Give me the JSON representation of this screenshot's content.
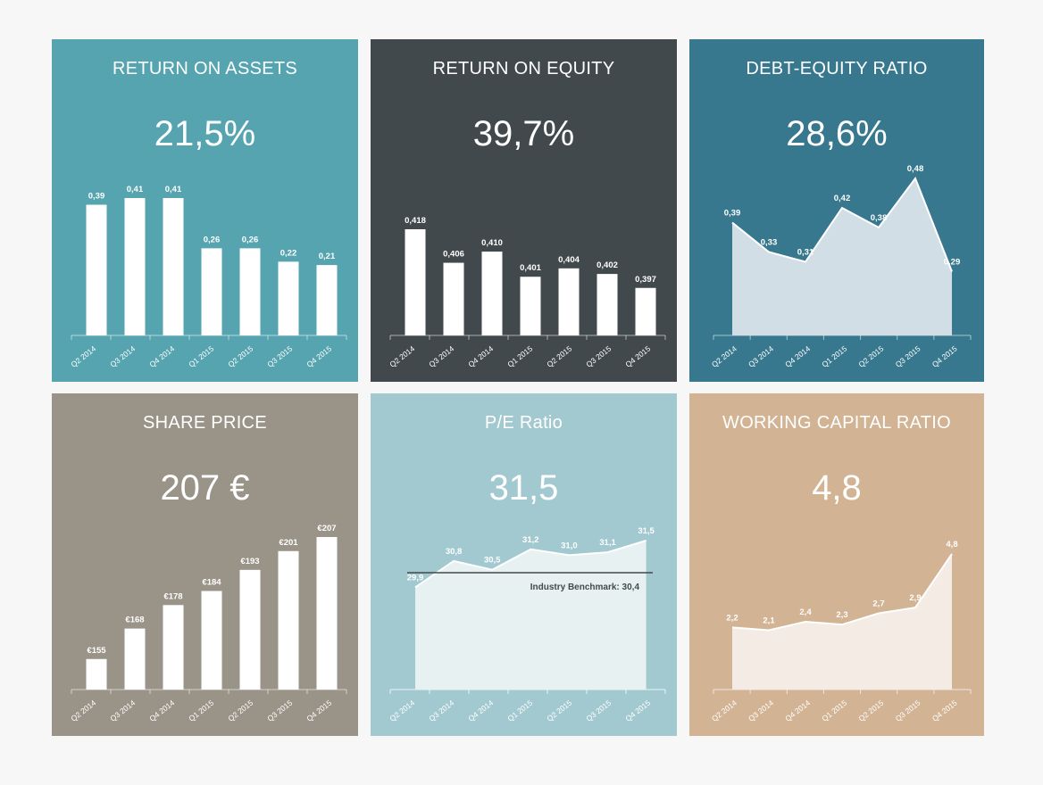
{
  "colors": {
    "page_bg": "#f7f7f7",
    "return_on_assets": "#55a4b0",
    "return_on_equity": "#42494c",
    "debt_equity_ratio": "#37788e",
    "share_price": "#9a9488",
    "pe_ratio": "#a2c9d0",
    "working_capital_ratio": "#d2b394"
  },
  "panels": [
    {
      "title": "RETURN ON ASSETS",
      "value": "21,5%"
    },
    {
      "title": "RETURN ON EQUITY",
      "value": "39,7%"
    },
    {
      "title": "DEBT-EQUITY RATIO",
      "value": "28,6%"
    },
    {
      "title": "SHARE PRICE",
      "value": "207 €"
    },
    {
      "title": "P/E Ratio",
      "value": "31,5"
    },
    {
      "title": "WORKING CAPITAL RATIO",
      "value": "4,8"
    }
  ],
  "chart_data": [
    {
      "type": "bar",
      "categories": [
        "Q2 2014",
        "Q3 2014",
        "Q4 2014",
        "Q1 2015",
        "Q2 2015",
        "Q3 2015",
        "Q4 2015"
      ],
      "values": [
        0.39,
        0.41,
        0.41,
        0.26,
        0.26,
        0.22,
        0.21
      ],
      "data_labels": [
        "0,39",
        "0,41",
        "0,41",
        "0,26",
        "0,26",
        "0,22",
        "0,21"
      ],
      "ylim": [
        0,
        0.41
      ]
    },
    {
      "type": "bar",
      "categories": [
        "Q2 2014",
        "Q3 2014",
        "Q4 2014",
        "Q1 2015",
        "Q2 2015",
        "Q3 2015",
        "Q4 2015"
      ],
      "values": [
        0.418,
        0.406,
        0.41,
        0.401,
        0.404,
        0.402,
        0.397
      ],
      "data_labels": [
        "0,418",
        "0,406",
        "0,410",
        "0,401",
        "0,404",
        "0,402",
        "0,397"
      ],
      "ylim": [
        0.38,
        0.418
      ]
    },
    {
      "type": "area",
      "categories": [
        "Q2 2014",
        "Q3 2014",
        "Q4 2014",
        "Q1 2015",
        "Q2 2015",
        "Q3 2015",
        "Q4 2015"
      ],
      "values": [
        0.39,
        0.33,
        0.31,
        0.42,
        0.38,
        0.48,
        0.29
      ],
      "data_labels": [
        "0,39",
        "0,33",
        "0,31",
        "0,42",
        "0,38",
        "0,48",
        "0,29"
      ],
      "ylim": [
        0.16,
        0.48
      ]
    },
    {
      "type": "bar",
      "categories": [
        "Q2 2014",
        "Q3 2014",
        "Q4 2014",
        "Q1 2015",
        "Q2 2015",
        "Q3 2015",
        "Q4 2015"
      ],
      "values": [
        155,
        168,
        178,
        184,
        193,
        201,
        207
      ],
      "data_labels": [
        "€155",
        "€168",
        "€178",
        "€184",
        "€193",
        "€201",
        "€207"
      ],
      "ylim": [
        142,
        207
      ]
    },
    {
      "type": "area",
      "categories": [
        "Q2 2014",
        "Q3 2014",
        "Q4 2014",
        "Q1 2015",
        "Q2 2015",
        "Q3 2015",
        "Q4 2015"
      ],
      "values": [
        29.9,
        30.8,
        30.5,
        31.2,
        31.0,
        31.1,
        31.5
      ],
      "data_labels": [
        "29,9",
        "30,8",
        "30,5",
        "31,2",
        "31,0",
        "31,1",
        "31,5"
      ],
      "ylim": [
        26.4,
        31.5
      ],
      "benchmark": {
        "value": 30.4,
        "label": "Industry Benchmark: 30,4"
      }
    },
    {
      "type": "area",
      "categories": [
        "Q2 2014",
        "Q3 2014",
        "Q4 2014",
        "Q1 2015",
        "Q2 2015",
        "Q3 2015",
        "Q4 2015"
      ],
      "values": [
        2.2,
        2.1,
        2.4,
        2.3,
        2.7,
        2.9,
        4.8
      ],
      "data_labels": [
        "2,2",
        "2,1",
        "2,4",
        "2,3",
        "2,7",
        "2,9",
        "4,8"
      ],
      "ylim": [
        0,
        4.8
      ]
    }
  ]
}
